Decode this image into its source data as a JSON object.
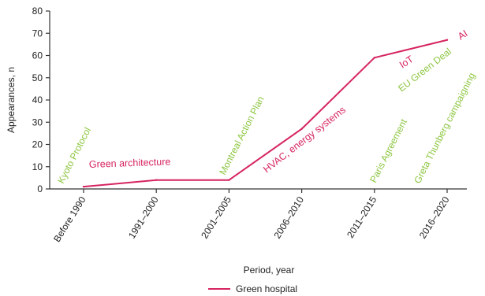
{
  "chart_data": {
    "type": "line",
    "xlabel": "Period, year",
    "ylabel": "Appearances, n",
    "ylim": [
      0,
      80
    ],
    "yticks": [
      0,
      10,
      20,
      30,
      40,
      50,
      60,
      70,
      80
    ],
    "categories": [
      "Before 1990",
      "1991–2000",
      "2001–2005",
      "2006–2010",
      "2011–2015",
      "2016–2020"
    ],
    "series": [
      {
        "name": "Green hospital",
        "color": "#d6245f",
        "values": [
          1,
          4,
          4,
          27,
          59,
          67
        ]
      }
    ],
    "legend_position": "bottom",
    "grid": false,
    "annotations": [
      {
        "text": "Kyoto Protocol",
        "category": "Before 1990",
        "color": "#8cc63f",
        "style": "rotated"
      },
      {
        "text": "Green architecture",
        "category": "1991–2000",
        "color": "#d6245f",
        "style": "horizontal"
      },
      {
        "text": "Montreal Action Plan",
        "category": "2001–2005",
        "color": "#8cc63f",
        "style": "rotated"
      },
      {
        "text": "HVAC, energy systems",
        "category": "2006–2010",
        "color": "#d6245f",
        "style": "rotated"
      },
      {
        "text": "Paris Agreement",
        "category": "2011–2015",
        "color": "#8cc63f",
        "style": "rotated"
      },
      {
        "text": "IoT",
        "category": "2011–2015",
        "color": "#d6245f",
        "style": "rotated"
      },
      {
        "text": "EU Green Deal",
        "category": "2016–2020",
        "color": "#8cc63f",
        "style": "rotated"
      },
      {
        "text": "Greta Thunberg campaigning",
        "category": "2016–2020",
        "color": "#8cc63f",
        "style": "rotated"
      },
      {
        "text": "AI",
        "category": "2016–2020",
        "color": "#d6245f",
        "style": "rotated"
      }
    ]
  }
}
